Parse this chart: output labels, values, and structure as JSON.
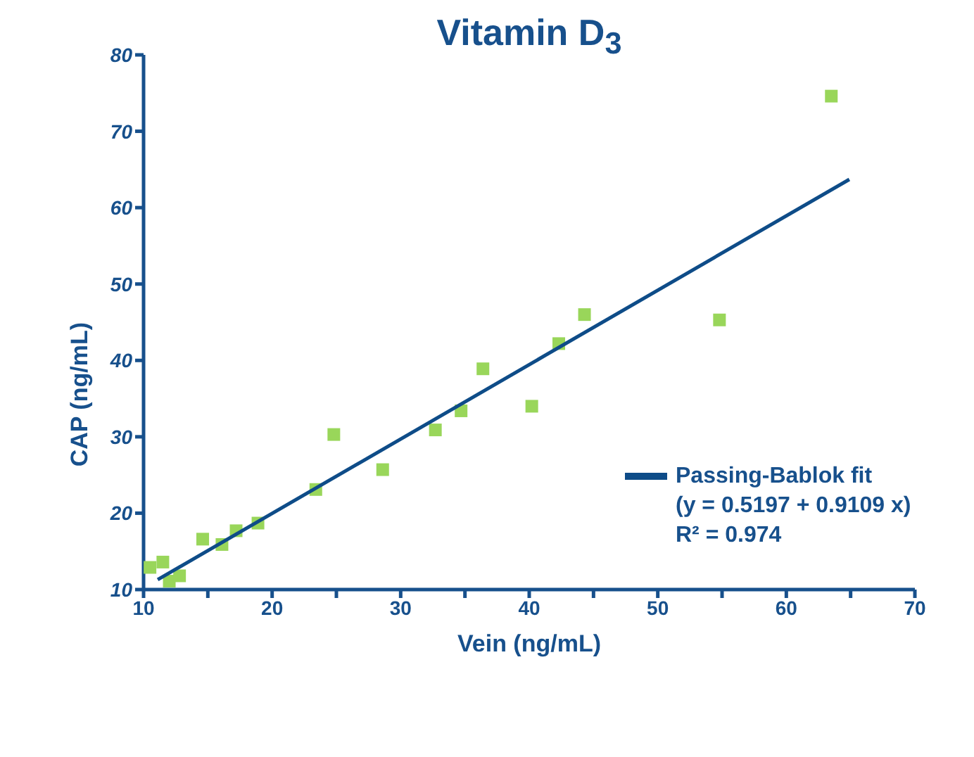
{
  "chart_data": {
    "type": "scatter",
    "title": "Vitamin D$_{3}$",
    "xlabel": "Vein (ng/mL)",
    "ylabel": "CAP (ng/mL)",
    "xlim": [
      10,
      70
    ],
    "ylim": [
      10,
      80
    ],
    "xticks": [
      10,
      {
        "value": 15,
        "label": null
      },
      20,
      {
        "value": 25,
        "label": null
      },
      30,
      {
        "value": 35,
        "label": null
      },
      40,
      {
        "value": 45,
        "label": null
      },
      50,
      {
        "value": 55,
        "label": null
      },
      60,
      {
        "value": 65,
        "label": null
      },
      70
    ],
    "yticks": [
      10,
      20,
      30,
      40,
      50,
      60,
      70,
      80
    ],
    "legend": "right",
    "annotations": [
      "(y = 0.5197 + 0.9109 x)",
      "R² = 0.974"
    ],
    "series": [
      {
        "color": "#99d65a",
        "marker": "square",
        "x": [
          10.5,
          11.5,
          12.0,
          12.8,
          14.6,
          16.1,
          17.2,
          18.9,
          23.4,
          24.8,
          28.6,
          32.7,
          34.7,
          36.4,
          40.2,
          42.3,
          44.3,
          54.8,
          63.5
        ],
        "values": [
          12.9,
          13.6,
          11.1,
          11.8,
          16.6,
          15.9,
          17.7,
          18.7,
          23.1,
          30.3,
          25.7,
          30.9,
          33.4,
          38.9,
          34.0,
          42.2,
          46.0,
          45.3,
          74.6
        ]
      },
      {
        "type": "line",
        "name": "Passing-Bablok fit",
        "color": "#0e4c88",
        "marker": "none",
        "x": [
          11.1,
          64.9
        ],
        "values": [
          11.3,
          63.7
        ]
      }
    ]
  }
}
